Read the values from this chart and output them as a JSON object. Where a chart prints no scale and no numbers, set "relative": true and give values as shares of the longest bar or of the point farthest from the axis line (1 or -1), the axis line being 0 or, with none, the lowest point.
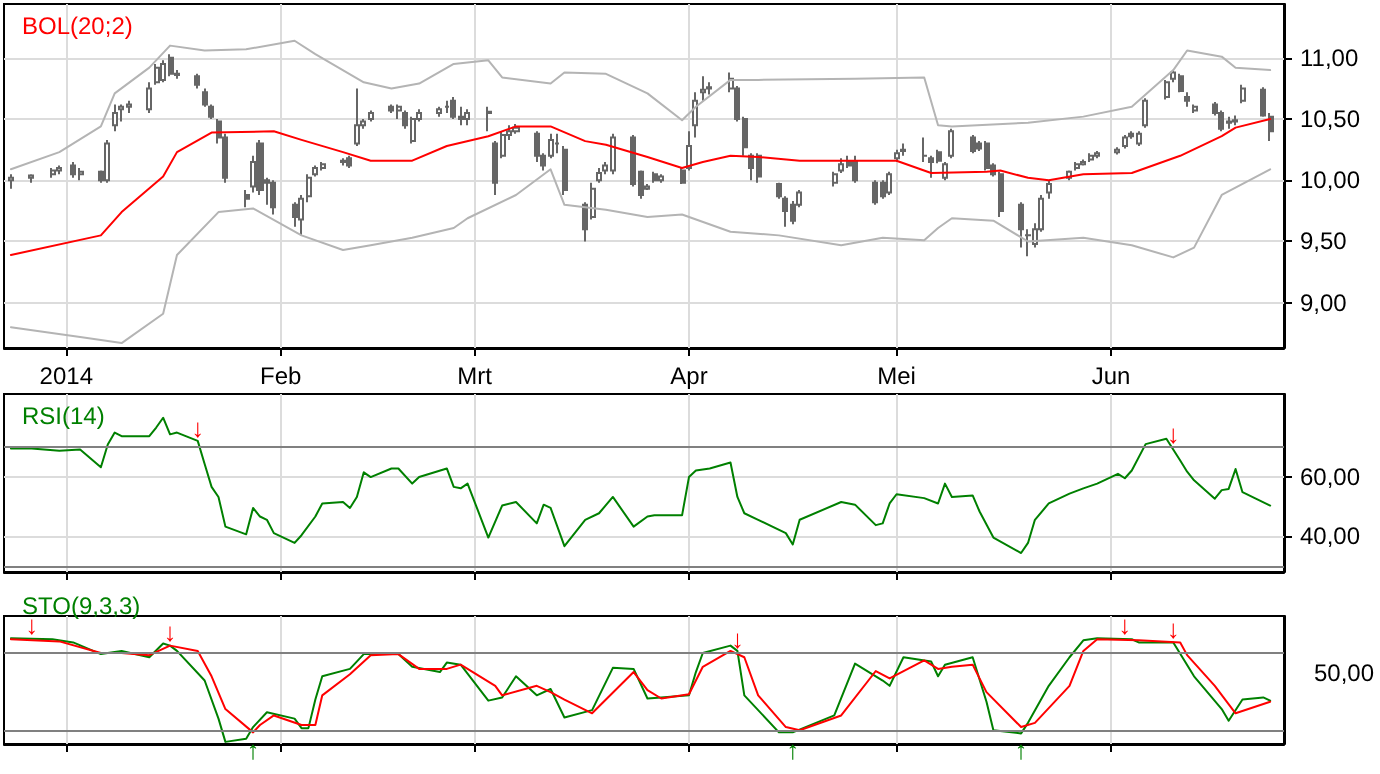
{
  "chart_data": [
    {
      "type": "candlestick",
      "title": "BOL(20;2)",
      "marker": "none",
      "grid": true,
      "xlim": [
        "2013-12-23",
        "2014-06-26"
      ],
      "xticks": [
        {
          "value": "2014-01-01",
          "label": "2014"
        },
        {
          "value": "2014-02-01",
          "label": "Feb"
        },
        {
          "value": "2014-03-01",
          "label": "Mrt"
        },
        {
          "value": "2014-04-01",
          "label": "Apr"
        },
        {
          "value": "2014-05-01",
          "label": "Mei"
        },
        {
          "value": "2014-06-01",
          "label": "Jun"
        }
      ],
      "ylim": [
        8.63,
        11.44
      ],
      "yticks": [
        {
          "value": 9,
          "label": "9,00"
        },
        {
          "value": 9.5,
          "label": "9,50"
        },
        {
          "value": 10,
          "label": "10,00"
        },
        {
          "value": 10.5,
          "label": "10,50"
        },
        {
          "value": 11,
          "label": "11,00"
        }
      ],
      "x": [
        "2013-12-24",
        "2013-12-27",
        "2013-12-30",
        "2013-12-31",
        "2014-01-02",
        "2014-01-03",
        "2014-01-06",
        "2014-01-07",
        "2014-01-08",
        "2014-01-09",
        "2014-01-10",
        "2014-01-13",
        "2014-01-14",
        "2014-01-15",
        "2014-01-16",
        "2014-01-17",
        "2014-01-20",
        "2014-01-21",
        "2014-01-22",
        "2014-01-23",
        "2014-01-24",
        "2014-01-27",
        "2014-01-28",
        "2014-01-29",
        "2014-01-30",
        "2014-01-31",
        "2014-02-03",
        "2014-02-04",
        "2014-02-05",
        "2014-02-06",
        "2014-02-07",
        "2014-02-10",
        "2014-02-11",
        "2014-02-12",
        "2014-02-13",
        "2014-02-14",
        "2014-02-17",
        "2014-02-18",
        "2014-02-19",
        "2014-02-20",
        "2014-02-21",
        "2014-02-24",
        "2014-02-25",
        "2014-02-26",
        "2014-02-27",
        "2014-02-28",
        "2014-03-03",
        "2014-03-04",
        "2014-03-05",
        "2014-03-06",
        "2014-03-07",
        "2014-03-10",
        "2014-03-11",
        "2014-03-12",
        "2014-03-13",
        "2014-03-14",
        "2014-03-17",
        "2014-03-18",
        "2014-03-19",
        "2014-03-20",
        "2014-03-21",
        "2014-03-24",
        "2014-03-25",
        "2014-03-26",
        "2014-03-27",
        "2014-03-28",
        "2014-03-31",
        "2014-04-01",
        "2014-04-02",
        "2014-04-03",
        "2014-04-04",
        "2014-04-07",
        "2014-04-08",
        "2014-04-09",
        "2014-04-10",
        "2014-04-11",
        "2014-04-14",
        "2014-04-15",
        "2014-04-16",
        "2014-04-17",
        "2014-04-22",
        "2014-04-23",
        "2014-04-24",
        "2014-04-25",
        "2014-04-28",
        "2014-04-29",
        "2014-04-30",
        "2014-05-01",
        "2014-05-02",
        "2014-05-05",
        "2014-05-06",
        "2014-05-07",
        "2014-05-08",
        "2014-05-09",
        "2014-05-12",
        "2014-05-13",
        "2014-05-14",
        "2014-05-15",
        "2014-05-16",
        "2014-05-19",
        "2014-05-20",
        "2014-05-21",
        "2014-05-22",
        "2014-05-23",
        "2014-05-26",
        "2014-05-27",
        "2014-05-28",
        "2014-05-29",
        "2014-05-30",
        "2014-06-02",
        "2014-06-03",
        "2014-06-04",
        "2014-06-05",
        "2014-06-06",
        "2014-06-09",
        "2014-06-10",
        "2014-06-11",
        "2014-06-12",
        "2014-06-13",
        "2014-06-16",
        "2014-06-17",
        "2014-06-18",
        "2014-06-19",
        "2014-06-20",
        "2014-06-23",
        "2014-06-24"
      ],
      "series": [
        {
          "color": "#666666",
          "ohlc": [
            [
              10.0,
              10.05,
              9.93,
              10.02
            ],
            [
              10.02,
              10.05,
              9.98,
              10.04
            ],
            [
              10.05,
              10.1,
              10.02,
              10.08
            ],
            [
              10.08,
              10.12,
              10.05,
              10.1
            ],
            [
              10.12,
              10.15,
              10.02,
              10.05
            ],
            [
              10.05,
              10.1,
              10.0,
              10.07
            ],
            [
              10.07,
              10.08,
              9.98,
              10.0
            ],
            [
              10.0,
              10.33,
              9.98,
              10.3
            ],
            [
              10.45,
              10.62,
              10.4,
              10.55
            ],
            [
              10.58,
              10.62,
              10.48,
              10.6
            ],
            [
              10.6,
              10.65,
              10.55,
              10.62
            ],
            [
              10.58,
              10.8,
              10.55,
              10.75
            ],
            [
              10.8,
              10.95,
              10.78,
              10.92
            ],
            [
              10.82,
              10.98,
              10.8,
              10.95
            ],
            [
              11.0,
              11.03,
              10.85,
              10.87
            ],
            [
              10.87,
              10.9,
              10.83,
              10.86
            ],
            [
              10.85,
              10.87,
              10.75,
              10.78
            ],
            [
              10.72,
              10.75,
              10.6,
              10.62
            ],
            [
              10.6,
              10.62,
              10.5,
              10.52
            ],
            [
              10.48,
              10.5,
              10.3,
              10.35
            ],
            [
              10.35,
              10.38,
              9.98,
              10.02
            ],
            [
              9.88,
              9.92,
              9.78,
              9.85
            ],
            [
              9.95,
              10.2,
              9.9,
              10.15
            ],
            [
              10.3,
              10.33,
              9.88,
              9.92
            ],
            [
              10.0,
              10.02,
              9.8,
              9.98
            ],
            [
              9.98,
              10.0,
              9.72,
              9.78
            ],
            [
              9.8,
              9.82,
              9.62,
              9.7
            ],
            [
              9.68,
              9.88,
              9.55,
              9.85
            ],
            [
              9.87,
              10.05,
              9.82,
              10.02
            ],
            [
              10.05,
              10.12,
              10.03,
              10.1
            ],
            [
              10.1,
              10.15,
              10.08,
              10.13
            ],
            [
              10.15,
              10.18,
              10.12,
              10.16
            ],
            [
              10.18,
              10.2,
              10.1,
              10.12
            ],
            [
              10.3,
              10.75,
              10.28,
              10.45
            ],
            [
              10.45,
              10.5,
              10.42,
              10.48
            ],
            [
              10.5,
              10.57,
              10.48,
              10.55
            ],
            [
              10.6,
              10.62,
              10.55,
              10.57
            ],
            [
              10.57,
              10.62,
              10.5,
              10.6
            ],
            [
              10.55,
              10.57,
              10.42,
              10.45
            ],
            [
              10.32,
              10.52,
              10.3,
              10.5
            ],
            [
              10.5,
              10.58,
              10.48,
              10.55
            ],
            [
              10.55,
              10.6,
              10.52,
              10.58
            ],
            [
              10.6,
              10.65,
              10.55,
              10.6
            ],
            [
              10.65,
              10.68,
              10.5,
              10.52
            ],
            [
              10.52,
              10.6,
              10.45,
              10.5
            ],
            [
              10.5,
              10.58,
              10.45,
              10.55
            ],
            [
              10.55,
              10.6,
              10.4,
              10.56
            ],
            [
              10.3,
              10.32,
              9.88,
              9.98
            ],
            [
              10.2,
              10.4,
              10.18,
              10.37
            ],
            [
              10.37,
              10.45,
              10.33,
              10.4
            ],
            [
              10.4,
              10.46,
              10.38,
              10.43
            ],
            [
              10.38,
              10.4,
              10.15,
              10.2
            ],
            [
              10.2,
              10.22,
              10.08,
              10.12
            ],
            [
              10.2,
              10.38,
              10.18,
              10.33
            ],
            [
              10.3,
              10.38,
              10.22,
              10.3
            ],
            [
              10.25,
              10.28,
              9.88,
              9.92
            ],
            [
              9.8,
              9.82,
              9.5,
              9.6
            ],
            [
              9.7,
              9.98,
              9.68,
              9.93
            ],
            [
              10.0,
              10.1,
              9.98,
              10.06
            ],
            [
              10.08,
              10.15,
              10.05,
              10.12
            ],
            [
              10.08,
              10.38,
              10.05,
              10.35
            ],
            [
              10.35,
              10.37,
              9.95,
              9.97
            ],
            [
              10.07,
              10.08,
              9.85,
              9.88
            ],
            [
              9.93,
              9.97,
              9.92,
              9.95
            ],
            [
              10.05,
              10.07,
              9.98,
              10.0
            ],
            [
              10.0,
              10.05,
              9.98,
              10.03
            ],
            [
              10.08,
              10.1,
              9.97,
              9.98
            ],
            [
              10.1,
              10.4,
              10.08,
              10.28
            ],
            [
              10.45,
              10.72,
              10.35,
              10.65
            ],
            [
              10.72,
              10.85,
              10.65,
              10.74
            ],
            [
              10.75,
              10.8,
              10.7,
              10.76
            ],
            [
              10.75,
              10.88,
              10.72,
              10.83
            ],
            [
              10.75,
              10.77,
              10.48,
              10.5
            ],
            [
              10.5,
              10.52,
              10.2,
              10.27
            ],
            [
              10.2,
              10.22,
              10.0,
              10.1
            ],
            [
              10.2,
              10.22,
              9.98,
              10.03
            ],
            [
              9.97,
              9.98,
              9.85,
              9.87
            ],
            [
              9.85,
              9.87,
              9.62,
              9.75
            ],
            [
              9.8,
              9.83,
              9.64,
              9.67
            ],
            [
              9.8,
              9.92,
              9.78,
              9.9
            ],
            [
              9.98,
              10.07,
              9.95,
              10.05
            ],
            [
              10.08,
              10.18,
              10.06,
              10.13
            ],
            [
              10.15,
              10.2,
              10.1,
              10.12
            ],
            [
              10.15,
              10.2,
              9.98,
              10.0
            ],
            [
              9.98,
              10.0,
              9.8,
              9.82
            ],
            [
              9.98,
              10.0,
              9.85,
              9.87
            ],
            [
              9.9,
              10.07,
              9.88,
              10.05
            ],
            [
              10.18,
              10.25,
              10.15,
              10.22
            ],
            [
              10.25,
              10.3,
              10.2,
              10.24
            ],
            [
              10.2,
              10.35,
              10.15,
              10.2
            ],
            [
              10.18,
              10.2,
              10.02,
              10.15
            ],
            [
              10.23,
              10.25,
              10.14,
              10.16
            ],
            [
              10.02,
              10.15,
              10.0,
              10.13
            ],
            [
              10.2,
              10.42,
              10.18,
              10.4
            ],
            [
              10.35,
              10.37,
              10.22,
              10.24
            ],
            [
              10.3,
              10.32,
              10.24,
              10.26
            ],
            [
              10.3,
              10.32,
              10.08,
              10.1
            ],
            [
              10.12,
              10.14,
              10.03,
              10.05
            ],
            [
              10.05,
              10.07,
              9.7,
              9.75
            ],
            [
              9.8,
              9.82,
              9.45,
              9.6
            ],
            [
              9.55,
              9.6,
              9.38,
              9.55
            ],
            [
              9.48,
              9.65,
              9.45,
              9.6
            ],
            [
              9.6,
              9.88,
              9.58,
              9.85
            ],
            [
              9.9,
              10.0,
              9.85,
              9.97
            ],
            [
              10.02,
              10.08,
              10.0,
              10.07
            ],
            [
              10.1,
              10.15,
              10.08,
              10.13
            ],
            [
              10.13,
              10.17,
              10.12,
              10.15
            ],
            [
              10.17,
              10.22,
              10.15,
              10.2
            ],
            [
              10.2,
              10.24,
              10.18,
              10.22
            ],
            [
              10.23,
              10.27,
              10.21,
              10.25
            ],
            [
              10.28,
              10.37,
              10.26,
              10.35
            ],
            [
              10.38,
              10.4,
              10.34,
              10.36
            ],
            [
              10.3,
              10.4,
              10.28,
              10.38
            ],
            [
              10.45,
              10.67,
              10.43,
              10.65
            ],
            [
              10.68,
              10.82,
              10.66,
              10.8
            ],
            [
              10.83,
              10.9,
              10.8,
              10.88
            ],
            [
              10.85,
              10.87,
              10.72,
              10.73
            ],
            [
              10.68,
              10.72,
              10.6,
              10.65
            ],
            [
              10.57,
              10.62,
              10.55,
              10.6
            ],
            [
              10.62,
              10.64,
              10.53,
              10.55
            ],
            [
              10.55,
              10.57,
              10.4,
              10.42
            ],
            [
              10.47,
              10.52,
              10.42,
              10.48
            ],
            [
              10.48,
              10.53,
              10.45,
              10.49
            ],
            [
              10.65,
              10.78,
              10.63,
              10.75
            ],
            [
              10.74,
              10.76,
              10.52,
              10.53
            ],
            [
              10.52,
              10.55,
              10.32,
              10.4
            ]
          ]
        },
        {
          "type": "line",
          "color": "#ff0000",
          "x": [
            "2013-12-24",
            "2014-01-06",
            "2014-01-09",
            "2014-01-15",
            "2014-01-17",
            "2014-01-22",
            "2014-01-31",
            "2014-02-04",
            "2014-02-10",
            "2014-02-14",
            "2014-02-20",
            "2014-02-25",
            "2014-03-03",
            "2014-03-07",
            "2014-03-12",
            "2014-03-17",
            "2014-03-20",
            "2014-03-26",
            "2014-03-31",
            "2014-04-03",
            "2014-04-07",
            "2014-04-11",
            "2014-04-17",
            "2014-04-25",
            "2014-05-01",
            "2014-05-06",
            "2014-05-14",
            "2014-05-16",
            "2014-05-20",
            "2014-05-23",
            "2014-05-28",
            "2014-06-04",
            "2014-06-11",
            "2014-06-17",
            "2014-06-19",
            "2014-06-24"
          ],
          "values": [
            9.39,
            9.55,
            9.74,
            10.03,
            10.23,
            10.39,
            10.4,
            10.33,
            10.23,
            10.16,
            10.16,
            10.28,
            10.36,
            10.44,
            10.44,
            10.32,
            10.29,
            10.19,
            10.1,
            10.15,
            10.2,
            10.19,
            10.16,
            10.16,
            10.16,
            10.06,
            10.07,
            10.08,
            10.02,
            10.0,
            10.05,
            10.06,
            10.2,
            10.36,
            10.43,
            10.5
          ]
        },
        {
          "type": "line",
          "color": "#b4b4b4",
          "x": [
            "2013-12-24",
            "2013-12-31",
            "2014-01-06",
            "2014-01-08",
            "2014-01-13",
            "2014-01-16",
            "2014-01-21",
            "2014-01-27",
            "2014-02-03",
            "2014-02-06",
            "2014-02-13",
            "2014-02-17",
            "2014-02-21",
            "2014-02-26",
            "2014-03-03",
            "2014-03-05",
            "2014-03-12",
            "2014-03-14",
            "2014-03-20",
            "2014-03-26",
            "2014-03-31",
            "2014-04-02",
            "2014-04-07",
            "2014-04-11",
            "2014-04-25",
            "2014-05-05",
            "2014-05-07",
            "2014-05-09",
            "2014-05-20",
            "2014-05-28",
            "2014-06-04",
            "2014-06-10",
            "2014-06-12",
            "2014-06-17",
            "2014-06-19",
            "2014-06-24"
          ],
          "values": [
            10.09,
            10.23,
            10.44,
            10.71,
            10.92,
            11.1,
            11.06,
            11.07,
            11.14,
            11.03,
            10.8,
            10.75,
            10.79,
            10.95,
            10.98,
            10.84,
            10.79,
            10.88,
            10.87,
            10.71,
            10.49,
            10.6,
            10.82,
            10.82,
            10.83,
            10.84,
            10.45,
            10.44,
            10.47,
            10.52,
            10.6,
            10.9,
            11.06,
            11.01,
            10.92,
            10.9
          ]
        },
        {
          "type": "line",
          "color": "#b4b4b4",
          "x": [
            "2013-12-24",
            "2014-01-03",
            "2014-01-09",
            "2014-01-15",
            "2014-01-17",
            "2014-01-23",
            "2014-01-28",
            "2014-02-04",
            "2014-02-10",
            "2014-02-14",
            "2014-02-20",
            "2014-02-26",
            "2014-02-28",
            "2014-03-07",
            "2014-03-12",
            "2014-03-14",
            "2014-03-20",
            "2014-03-26",
            "2014-03-31",
            "2014-04-07",
            "2014-04-14",
            "2014-04-23",
            "2014-04-29",
            "2014-05-05",
            "2014-05-07",
            "2014-05-09",
            "2014-05-15",
            "2014-05-20",
            "2014-05-28",
            "2014-06-04",
            "2014-06-10",
            "2014-06-13",
            "2014-06-17",
            "2014-06-24"
          ],
          "values": [
            8.8,
            8.72,
            8.67,
            8.91,
            9.39,
            9.74,
            9.77,
            9.55,
            9.43,
            9.47,
            9.53,
            9.61,
            9.69,
            9.88,
            10.09,
            9.8,
            9.76,
            9.7,
            9.72,
            9.58,
            9.55,
            9.47,
            9.53,
            9.51,
            9.61,
            9.69,
            9.67,
            9.5,
            9.53,
            9.47,
            9.37,
            9.45,
            9.88,
            10.09
          ]
        }
      ]
    },
    {
      "type": "line",
      "title": "RSI(14)",
      "marker": "none",
      "grid": true,
      "tick_labels": "y",
      "xlim": [
        "2013-12-23",
        "2014-06-26"
      ],
      "xticks": [
        {
          "value": "2014-01-01",
          "label": null
        },
        {
          "value": "2014-02-01",
          "label": null
        },
        {
          "value": "2014-03-01",
          "label": null
        },
        {
          "value": "2014-04-01",
          "label": null
        },
        {
          "value": "2014-05-01",
          "label": null
        },
        {
          "value": "2014-06-01",
          "label": null
        }
      ],
      "ylim": [
        28,
        88
      ],
      "yticks": [
        {
          "value": 40,
          "label": "40,00"
        },
        {
          "value": 60,
          "label": "60,00"
        }
      ],
      "ref_lines": [
        {
          "axis": "y",
          "value": 70,
          "color": "#808080"
        },
        {
          "axis": "y",
          "value": 30,
          "color": "#808080"
        }
      ],
      "annotations": [
        {
          "text": "↓",
          "x": "2014-01-20",
          "y": 72
        },
        {
          "text": "↓",
          "x": "2014-06-10",
          "y": 70
        }
      ],
      "series": [
        {
          "color": "#008000",
          "x": [
            "2013-12-24",
            "2013-12-27",
            "2013-12-31",
            "2014-01-03",
            "2014-01-06",
            "2014-01-07",
            "2014-01-08",
            "2014-01-09",
            "2014-01-13",
            "2014-01-14",
            "2014-01-15",
            "2014-01-16",
            "2014-01-17",
            "2014-01-20",
            "2014-01-21",
            "2014-01-22",
            "2014-01-23",
            "2014-01-24",
            "2014-01-27",
            "2014-01-28",
            "2014-01-29",
            "2014-01-30",
            "2014-01-31",
            "2014-02-03",
            "2014-02-04",
            "2014-02-06",
            "2014-02-07",
            "2014-02-10",
            "2014-02-11",
            "2014-02-12",
            "2014-02-13",
            "2014-02-14",
            "2014-02-17",
            "2014-02-18",
            "2014-02-20",
            "2014-02-21",
            "2014-02-25",
            "2014-02-26",
            "2014-02-27",
            "2014-02-28",
            "2014-03-03",
            "2014-03-05",
            "2014-03-07",
            "2014-03-10",
            "2014-03-11",
            "2014-03-12",
            "2014-03-14",
            "2014-03-17",
            "2014-03-19",
            "2014-03-21",
            "2014-03-24",
            "2014-03-26",
            "2014-03-27",
            "2014-03-31",
            "2014-04-01",
            "2014-04-02",
            "2014-04-04",
            "2014-04-07",
            "2014-04-08",
            "2014-04-09",
            "2014-04-11",
            "2014-04-15",
            "2014-04-16",
            "2014-04-17",
            "2014-04-23",
            "2014-04-25",
            "2014-04-28",
            "2014-04-29",
            "2014-04-30",
            "2014-05-01",
            "2014-05-05",
            "2014-05-07",
            "2014-05-08",
            "2014-05-09",
            "2014-05-12",
            "2014-05-13",
            "2014-05-15",
            "2014-05-19",
            "2014-05-20",
            "2014-05-21",
            "2014-05-23",
            "2014-05-26",
            "2014-05-28",
            "2014-05-30",
            "2014-06-02",
            "2014-06-03",
            "2014-06-04",
            "2014-06-06",
            "2014-06-09",
            "2014-06-11",
            "2014-06-12",
            "2014-06-13",
            "2014-06-16",
            "2014-06-17",
            "2014-06-18",
            "2014-06-19",
            "2014-06-20",
            "2014-06-24"
          ],
          "values": [
            69.6,
            69.6,
            68.9,
            69.3,
            63.3,
            71,
            75,
            73.8,
            73.8,
            76.7,
            80,
            74.4,
            75,
            72.2,
            64.4,
            56.7,
            53.3,
            43.3,
            40.7,
            49.6,
            46.7,
            45.6,
            41.1,
            37.8,
            40.4,
            46.7,
            51.1,
            51.6,
            49.6,
            53.3,
            61.6,
            60,
            62.9,
            62.9,
            57.8,
            60,
            62.9,
            56.7,
            56.2,
            57.8,
            39.6,
            50.4,
            51.6,
            44.4,
            50.7,
            49.6,
            36.7,
            45.6,
            47.8,
            53.3,
            43.3,
            46.7,
            47.1,
            47.1,
            60,
            62.2,
            62.9,
            64.9,
            53.3,
            47.8,
            45.6,
            41.1,
            37.3,
            45.6,
            51.6,
            50.7,
            43.8,
            44.4,
            51.1,
            54.2,
            52.9,
            51.1,
            57.8,
            53.3,
            53.8,
            48.4,
            39.6,
            34.4,
            37.8,
            45.6,
            51.1,
            54.4,
            56.2,
            57.8,
            61.1,
            59.6,
            62.2,
            71.1,
            72.9,
            65.6,
            61.8,
            58.9,
            52.7,
            55.6,
            56,
            62.7,
            54.9,
            50.4
          ]
        }
      ]
    },
    {
      "type": "line",
      "title": "STO(9,3,3)",
      "marker": "none",
      "grid": true,
      "tick_labels": "y",
      "xlim": [
        "2013-12-23",
        "2014-06-26"
      ],
      "xticks": [
        {
          "value": "2014-01-01",
          "label": null
        },
        {
          "value": "2014-02-01",
          "label": null
        },
        {
          "value": "2014-03-01",
          "label": null
        },
        {
          "value": "2014-04-01",
          "label": null
        },
        {
          "value": "2014-05-01",
          "label": null
        },
        {
          "value": "2014-06-01",
          "label": null
        }
      ],
      "relative": true,
      "ref_lines": [
        {
          "axis": "y",
          "value": 0.87,
          "color": "#808080"
        },
        {
          "axis": "y",
          "value": 0.12,
          "color": "#808080"
        }
      ],
      "annotations": [
        "50,00",
        {
          "text": "↓",
          "x": "2013-12-27",
          "y": 1.0
        },
        {
          "text": "↓",
          "x": "2014-01-16",
          "y": 0.94
        },
        {
          "text": "↑",
          "x": "2014-01-28",
          "y": 0.12
        },
        {
          "text": "↓",
          "x": "2014-04-08",
          "y": 0.87
        },
        {
          "text": "↑",
          "x": "2014-04-16",
          "y": 0.12
        },
        {
          "text": "↑",
          "x": "2014-05-19",
          "y": 0.12
        },
        {
          "text": "↓",
          "x": "2014-06-03",
          "y": 1.0
        },
        {
          "text": "↓",
          "x": "2014-06-10",
          "y": 0.96
        }
      ],
      "series": [
        {
          "color": "#008000",
          "x": [
            "2013-12-24",
            "2013-12-30",
            "2014-01-02",
            "2014-01-06",
            "2014-01-08",
            "2014-01-09",
            "2014-01-13",
            "2014-01-15",
            "2014-01-16",
            "2014-01-17",
            "2014-01-21",
            "2014-01-23",
            "2014-01-24",
            "2014-01-27",
            "2014-01-28",
            "2014-01-30",
            "2014-02-03",
            "2014-02-04",
            "2014-02-05",
            "2014-02-06",
            "2014-02-07",
            "2014-02-11",
            "2014-02-13",
            "2014-02-18",
            "2014-02-20",
            "2014-02-24",
            "2014-02-25",
            "2014-02-27",
            "2014-03-03",
            "2014-03-05",
            "2014-03-07",
            "2014-03-10",
            "2014-03-12",
            "2014-03-14",
            "2014-03-18",
            "2014-03-21",
            "2014-03-24",
            "2014-03-26",
            "2014-03-28",
            "2014-04-01",
            "2014-04-02",
            "2014-04-03",
            "2014-04-07",
            "2014-04-08",
            "2014-04-09",
            "2014-04-14",
            "2014-04-16",
            "2014-04-22",
            "2014-04-25",
            "2014-04-29",
            "2014-04-30",
            "2014-05-02",
            "2014-05-06",
            "2014-05-07",
            "2014-05-08",
            "2014-05-12",
            "2014-05-14",
            "2014-05-15",
            "2014-05-19",
            "2014-05-20",
            "2014-05-23",
            "2014-05-26",
            "2014-05-28",
            "2014-05-30",
            "2014-06-04",
            "2014-06-05",
            "2014-06-10",
            "2014-06-13",
            "2014-06-17",
            "2014-06-18",
            "2014-06-20",
            "2014-06-23",
            "2014-06-24"
          ],
          "values": [
            1.0,
            0.99,
            0.96,
            0.85,
            0.87,
            0.88,
            0.82,
            0.95,
            0.93,
            0.88,
            0.6,
            0.24,
            0.02,
            0.05,
            0.16,
            0.3,
            0.24,
            0.15,
            0.15,
            0.42,
            0.64,
            0.71,
            0.85,
            0.85,
            0.73,
            0.68,
            0.77,
            0.75,
            0.41,
            0.44,
            0.64,
            0.46,
            0.52,
            0.25,
            0.32,
            0.72,
            0.71,
            0.43,
            0.44,
            0.46,
            0.68,
            0.86,
            0.93,
            0.88,
            0.46,
            0.11,
            0.11,
            0.27,
            0.76,
            0.6,
            0.55,
            0.82,
            0.78,
            0.64,
            0.75,
            0.82,
            0.4,
            0.13,
            0.1,
            0.2,
            0.55,
            0.82,
            0.98,
            1.0,
            0.99,
            0.96,
            0.96,
            0.64,
            0.33,
            0.22,
            0.42,
            0.44,
            0.41
          ]
        },
        {
          "color": "#ff0000",
          "x": [
            "2013-12-24",
            "2013-12-31",
            "2014-01-06",
            "2014-01-09",
            "2014-01-13",
            "2014-01-16",
            "2014-01-20",
            "2014-01-22",
            "2014-01-24",
            "2014-01-28",
            "2014-01-29",
            "2014-01-31",
            "2014-02-04",
            "2014-02-06",
            "2014-02-07",
            "2014-02-11",
            "2014-02-14",
            "2014-02-18",
            "2014-02-21",
            "2014-02-25",
            "2014-02-27",
            "2014-03-04",
            "2014-03-05",
            "2014-03-10",
            "2014-03-12",
            "2014-03-14",
            "2014-03-18",
            "2014-03-20",
            "2014-03-24",
            "2014-03-26",
            "2014-03-28",
            "2014-04-01",
            "2014-04-03",
            "2014-04-07",
            "2014-04-09",
            "2014-04-11",
            "2014-04-15",
            "2014-04-17",
            "2014-04-23",
            "2014-04-28",
            "2014-04-30",
            "2014-05-05",
            "2014-05-07",
            "2014-05-09",
            "2014-05-12",
            "2014-05-14",
            "2014-05-19",
            "2014-05-21",
            "2014-05-26",
            "2014-05-28",
            "2014-05-30",
            "2014-06-05",
            "2014-06-11",
            "2014-06-12",
            "2014-06-16",
            "2014-06-19",
            "2014-06-24"
          ],
          "values": [
            0.99,
            0.97,
            0.86,
            0.86,
            0.84,
            0.93,
            0.88,
            0.64,
            0.33,
            0.11,
            0.18,
            0.27,
            0.18,
            0.18,
            0.46,
            0.66,
            0.84,
            0.85,
            0.71,
            0.71,
            0.75,
            0.55,
            0.46,
            0.55,
            0.49,
            0.42,
            0.29,
            0.42,
            0.68,
            0.51,
            0.43,
            0.47,
            0.73,
            0.88,
            0.82,
            0.46,
            0.16,
            0.13,
            0.27,
            0.69,
            0.62,
            0.79,
            0.71,
            0.73,
            0.75,
            0.49,
            0.16,
            0.2,
            0.55,
            0.88,
            0.99,
            0.98,
            0.96,
            0.84,
            0.55,
            0.29,
            0.4
          ]
        }
      ]
    }
  ]
}
